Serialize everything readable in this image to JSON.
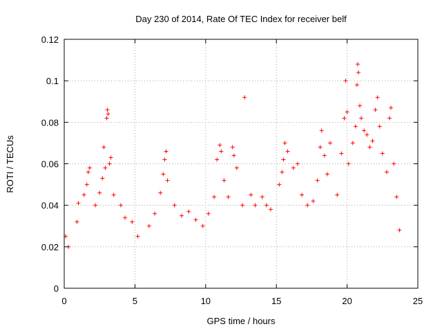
{
  "chart_data": {
    "type": "scatter",
    "title": "Day 230 of 2014, Rate Of TEC Index for receiver belf",
    "xlabel": "GPS time / hours",
    "ylabel": "ROTI / TECUs",
    "xlim": [
      0,
      25
    ],
    "ylim": [
      0,
      0.12
    ],
    "xticks": [
      "0",
      "5",
      "10",
      "15",
      "20",
      "25"
    ],
    "yticks": [
      "0",
      "0.02",
      "0.04",
      "0.06",
      "0.08",
      "0.1",
      "0.12"
    ],
    "grid": true,
    "marker": "plus",
    "color": "#ff0000",
    "series": [
      {
        "name": "",
        "points": [
          [
            0.1,
            0.025
          ],
          [
            0.3,
            0.02
          ],
          [
            0.9,
            0.032
          ],
          [
            1.0,
            0.041
          ],
          [
            1.4,
            0.045
          ],
          [
            1.6,
            0.05
          ],
          [
            1.7,
            0.056
          ],
          [
            1.8,
            0.058
          ],
          [
            2.2,
            0.04
          ],
          [
            2.5,
            0.046
          ],
          [
            2.7,
            0.053
          ],
          [
            2.8,
            0.068
          ],
          [
            2.9,
            0.058
          ],
          [
            3.0,
            0.082
          ],
          [
            3.05,
            0.086
          ],
          [
            3.1,
            0.084
          ],
          [
            3.2,
            0.06
          ],
          [
            3.3,
            0.063
          ],
          [
            3.5,
            0.045
          ],
          [
            4.0,
            0.04
          ],
          [
            4.3,
            0.034
          ],
          [
            4.8,
            0.032
          ],
          [
            5.2,
            0.025
          ],
          [
            6.0,
            0.03
          ],
          [
            6.4,
            0.036
          ],
          [
            6.8,
            0.046
          ],
          [
            7.0,
            0.055
          ],
          [
            7.1,
            0.062
          ],
          [
            7.2,
            0.066
          ],
          [
            7.3,
            0.052
          ],
          [
            7.8,
            0.04
          ],
          [
            8.3,
            0.035
          ],
          [
            8.8,
            0.037
          ],
          [
            9.3,
            0.033
          ],
          [
            9.8,
            0.03
          ],
          [
            10.2,
            0.036
          ],
          [
            10.6,
            0.044
          ],
          [
            10.8,
            0.062
          ],
          [
            11.0,
            0.069
          ],
          [
            11.1,
            0.066
          ],
          [
            11.3,
            0.052
          ],
          [
            11.6,
            0.044
          ],
          [
            11.9,
            0.068
          ],
          [
            12.0,
            0.064
          ],
          [
            12.2,
            0.058
          ],
          [
            12.6,
            0.04
          ],
          [
            12.75,
            0.092
          ],
          [
            13.2,
            0.045
          ],
          [
            13.5,
            0.04
          ],
          [
            14.0,
            0.044
          ],
          [
            14.3,
            0.04
          ],
          [
            14.6,
            0.038
          ],
          [
            15.2,
            0.05
          ],
          [
            15.4,
            0.056
          ],
          [
            15.5,
            0.062
          ],
          [
            15.6,
            0.07
          ],
          [
            15.8,
            0.066
          ],
          [
            16.2,
            0.058
          ],
          [
            16.5,
            0.06
          ],
          [
            16.8,
            0.045
          ],
          [
            17.2,
            0.04
          ],
          [
            17.6,
            0.042
          ],
          [
            17.9,
            0.052
          ],
          [
            18.1,
            0.068
          ],
          [
            18.2,
            0.076
          ],
          [
            18.4,
            0.064
          ],
          [
            18.6,
            0.055
          ],
          [
            18.8,
            0.07
          ],
          [
            19.3,
            0.045
          ],
          [
            19.6,
            0.065
          ],
          [
            19.8,
            0.082
          ],
          [
            19.9,
            0.1
          ],
          [
            20.0,
            0.085
          ],
          [
            20.1,
            0.06
          ],
          [
            20.4,
            0.07
          ],
          [
            20.6,
            0.078
          ],
          [
            20.7,
            0.098
          ],
          [
            20.75,
            0.108
          ],
          [
            20.8,
            0.104
          ],
          [
            20.9,
            0.088
          ],
          [
            21.0,
            0.082
          ],
          [
            21.2,
            0.076
          ],
          [
            21.4,
            0.074
          ],
          [
            21.6,
            0.068
          ],
          [
            21.8,
            0.071
          ],
          [
            22.0,
            0.086
          ],
          [
            22.15,
            0.092
          ],
          [
            22.3,
            0.078
          ],
          [
            22.5,
            0.065
          ],
          [
            22.8,
            0.056
          ],
          [
            23.0,
            0.082
          ],
          [
            23.1,
            0.087
          ],
          [
            23.3,
            0.06
          ],
          [
            23.5,
            0.044
          ],
          [
            23.7,
            0.028
          ]
        ]
      }
    ]
  }
}
